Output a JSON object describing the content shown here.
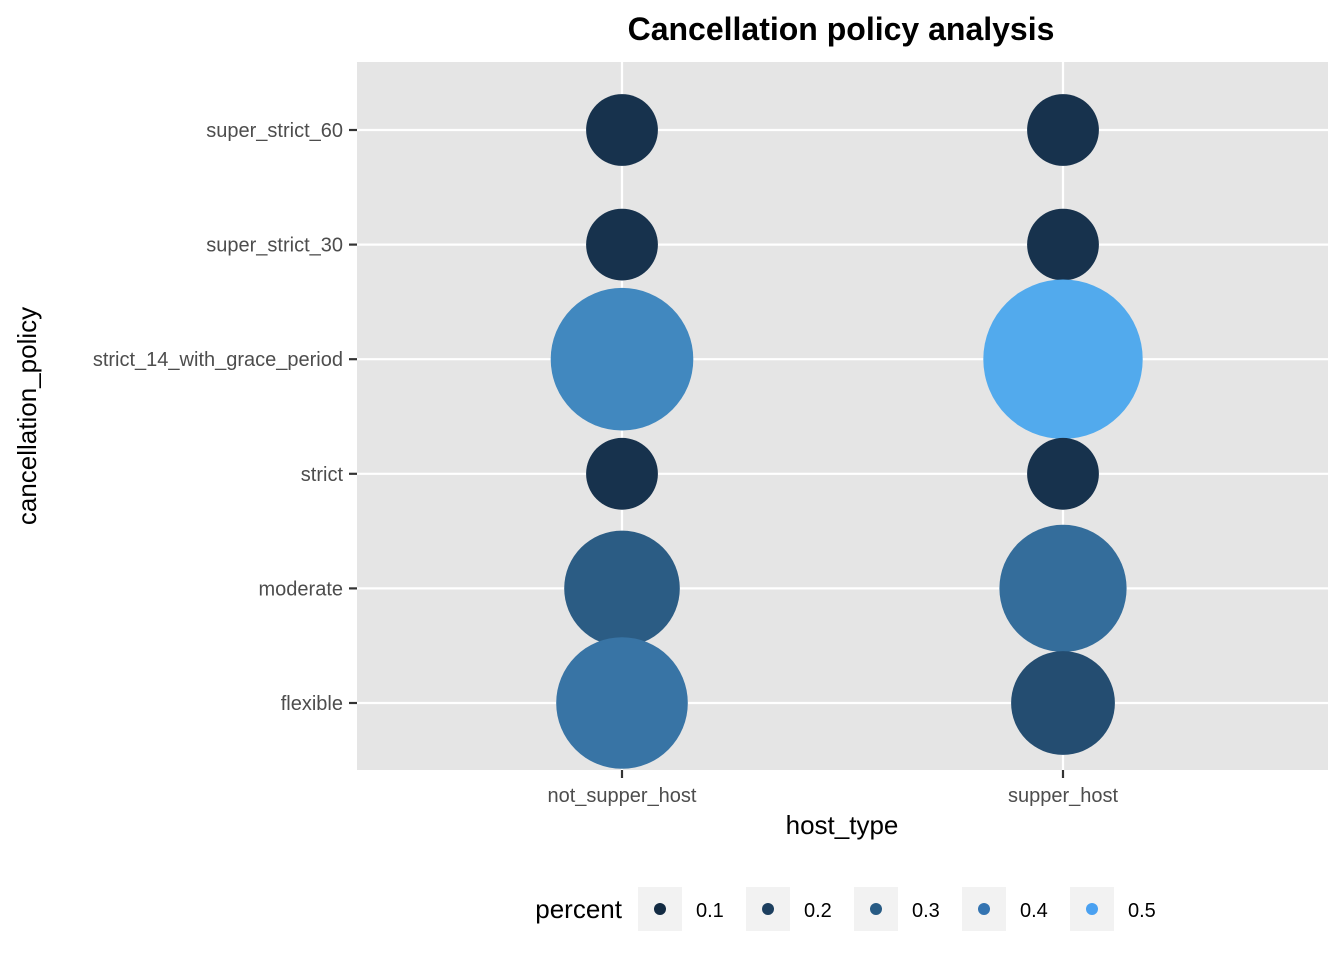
{
  "chart_data": {
    "type": "scatter",
    "title": "Cancellation policy analysis",
    "xlabel": "host_type",
    "ylabel": "cancellation_policy",
    "x_categories": [
      "not_supper_host",
      "supper_host"
    ],
    "y_categories": [
      "flexible",
      "moderate",
      "strict",
      "strict_14_with_grace_period",
      "super_strict_30",
      "super_strict_60"
    ],
    "points": [
      {
        "x": "not_supper_host",
        "y": "super_strict_60",
        "percent": 0.03
      },
      {
        "x": "not_supper_host",
        "y": "super_strict_30",
        "percent": 0.03
      },
      {
        "x": "not_supper_host",
        "y": "strict_14_with_grace_period",
        "percent": 0.38
      },
      {
        "x": "not_supper_host",
        "y": "strict",
        "percent": 0.03
      },
      {
        "x": "not_supper_host",
        "y": "moderate",
        "percent": 0.2
      },
      {
        "x": "not_supper_host",
        "y": "flexible",
        "percent": 0.3
      },
      {
        "x": "supper_host",
        "y": "super_strict_60",
        "percent": 0.03
      },
      {
        "x": "supper_host",
        "y": "super_strict_30",
        "percent": 0.03
      },
      {
        "x": "supper_host",
        "y": "strict_14_with_grace_period",
        "percent": 0.52
      },
      {
        "x": "supper_host",
        "y": "strict",
        "percent": 0.03
      },
      {
        "x": "supper_host",
        "y": "moderate",
        "percent": 0.27
      },
      {
        "x": "supper_host",
        "y": "flexible",
        "percent": 0.14
      }
    ],
    "grid": true,
    "panel_color": "#e5e5e5",
    "legend": {
      "title": "percent",
      "position": "bottom",
      "values": [
        0.1,
        0.2,
        0.3,
        0.4,
        0.5
      ],
      "labels": [
        "0.1",
        "0.2",
        "0.3",
        "0.4",
        "0.5"
      ],
      "colors": [
        "#132b43",
        "#1d3f5f",
        "#285b84",
        "#3474b1",
        "#4aa1f1"
      ]
    },
    "color_scale": {
      "low": "#132b43",
      "high": "#56b1f7",
      "range": [
        0.0,
        0.55
      ]
    }
  }
}
